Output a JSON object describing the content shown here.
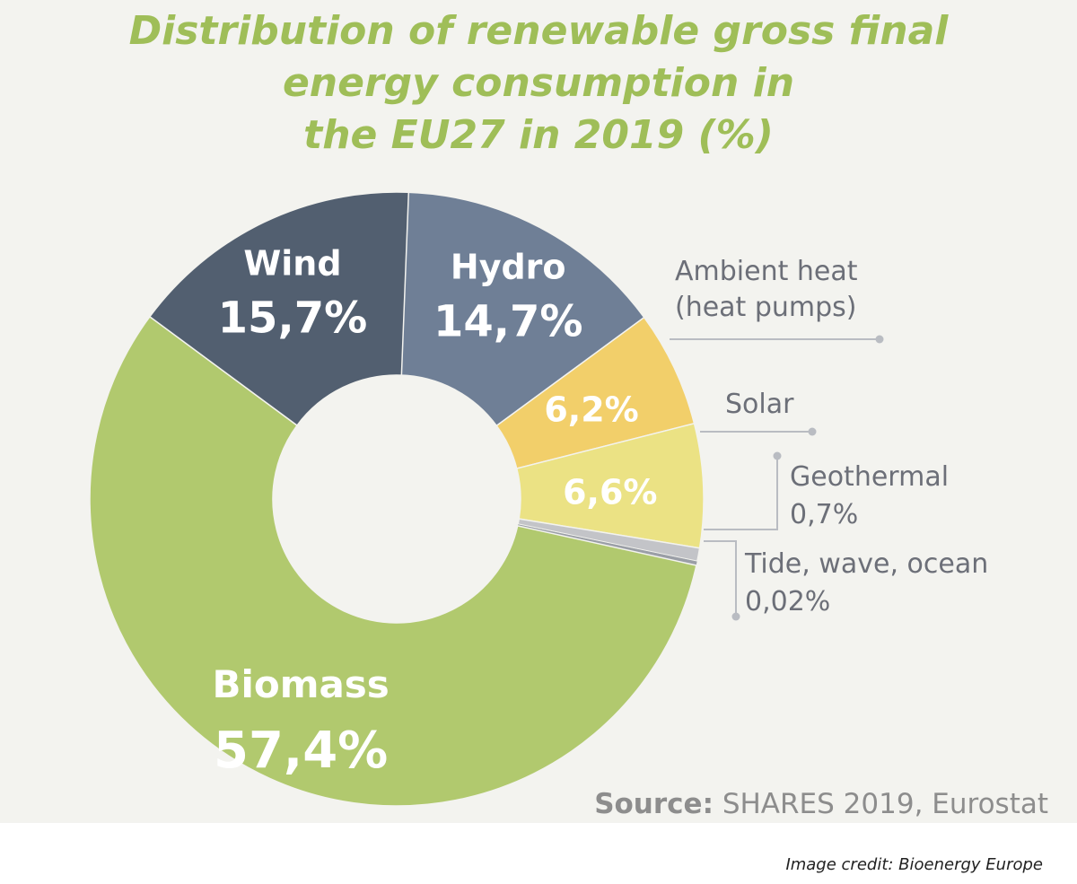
{
  "chart_data": {
    "type": "pie",
    "title_lines": [
      "Distribution of renewable gross final",
      "energy consumption in",
      "the EU27 in 2019 (%)"
    ],
    "slices": [
      {
        "name": "Hydro",
        "value": 14.7,
        "value_label": "14,7%",
        "color": "#6f7f96",
        "label_style": "inside"
      },
      {
        "name": "Ambient heat (heat pumps)",
        "name_lines": [
          "Ambient heat",
          "(heat pumps)"
        ],
        "value": 6.2,
        "value_label": "6,2%",
        "color": "#f2cf6a",
        "label_style": "callout"
      },
      {
        "name": "Solar",
        "value": 6.6,
        "value_label": "6,6%",
        "color": "#ebe284",
        "label_style": "callout"
      },
      {
        "name": "Geothermal",
        "value": 0.7,
        "value_label": "0,7%",
        "color": "#c3c4c8",
        "label_style": "callout"
      },
      {
        "name": "Tide, wave, ocean",
        "value": 0.02,
        "value_label": "0,02%",
        "color": "#9a9ea6",
        "label_style": "callout"
      },
      {
        "name": "Biomass",
        "value": 57.4,
        "value_label": "57,4%",
        "color": "#b1c96e",
        "label_style": "inside"
      },
      {
        "name": "Wind",
        "value": 15.7,
        "value_label": "15,7%",
        "color": "#525f70",
        "label_style": "inside"
      }
    ]
  },
  "source": {
    "label": "Source:",
    "text": " SHARES 2019, Eurostat"
  },
  "credit": "Image credit: Bioenergy Europe"
}
